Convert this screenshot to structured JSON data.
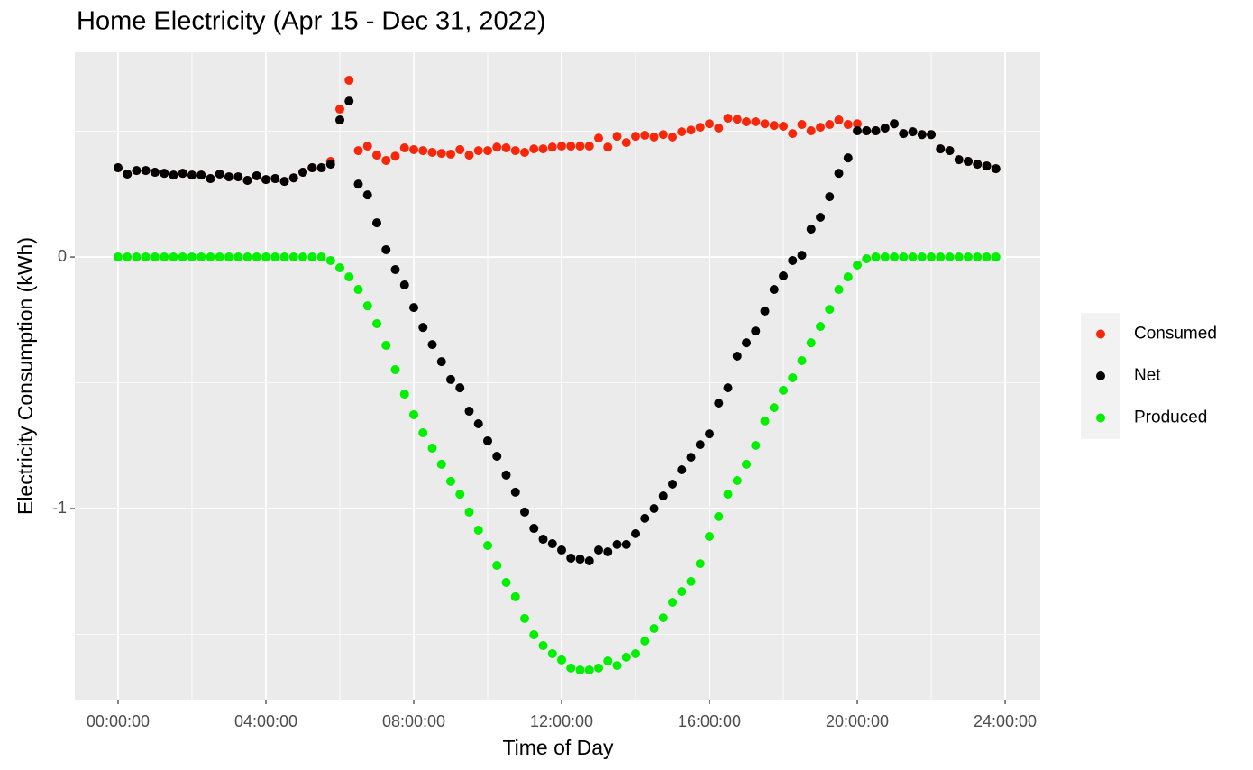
{
  "chart_data": {
    "type": "scatter",
    "title": "Home Electricity (Apr 15 - Dec 31, 2022)",
    "x_label": "Time of Day",
    "y_label": "Electricity Consumption (kWh)",
    "x": [
      0,
      0.25,
      0.5,
      0.75,
      1,
      1.25,
      1.5,
      1.75,
      2,
      2.25,
      2.5,
      2.75,
      3,
      3.25,
      3.5,
      3.75,
      4,
      4.25,
      4.5,
      4.75,
      5,
      5.25,
      5.5,
      5.75,
      6,
      6.25,
      6.5,
      6.75,
      7,
      7.25,
      7.5,
      7.75,
      8,
      8.25,
      8.5,
      8.75,
      9,
      9.25,
      9.5,
      9.75,
      10,
      10.25,
      10.5,
      10.75,
      11,
      11.25,
      11.5,
      11.75,
      12,
      12.25,
      12.5,
      12.75,
      13,
      13.25,
      13.5,
      13.75,
      14,
      14.25,
      14.5,
      14.75,
      15,
      15.25,
      15.5,
      15.75,
      16,
      16.25,
      16.5,
      16.75,
      17,
      17.25,
      17.5,
      17.75,
      18,
      18.25,
      18.5,
      18.75,
      19,
      19.25,
      19.5,
      19.75,
      20,
      20.25,
      20.5,
      20.75,
      21,
      21.25,
      21.5,
      21.75,
      22,
      22.25,
      22.5,
      22.75,
      23,
      23.25,
      23.5,
      23.75
    ],
    "series": [
      {
        "name": "Consumed",
        "color": "#f8270a",
        "values": [
          0.355,
          0.33,
          0.344,
          0.344,
          0.337,
          0.333,
          0.326,
          0.333,
          0.326,
          0.326,
          0.312,
          0.33,
          0.319,
          0.319,
          0.305,
          0.323,
          0.308,
          0.312,
          0.301,
          0.315,
          0.337,
          0.355,
          0.355,
          0.38,
          0.588,
          0.703,
          0.423,
          0.441,
          0.405,
          0.384,
          0.401,
          0.434,
          0.427,
          0.423,
          0.416,
          0.412,
          0.409,
          0.427,
          0.405,
          0.423,
          0.423,
          0.437,
          0.434,
          0.423,
          0.416,
          0.43,
          0.43,
          0.437,
          0.441,
          0.441,
          0.441,
          0.441,
          0.473,
          0.437,
          0.48,
          0.455,
          0.48,
          0.484,
          0.477,
          0.487,
          0.477,
          0.498,
          0.505,
          0.516,
          0.53,
          0.513,
          0.552,
          0.548,
          0.538,
          0.538,
          0.53,
          0.523,
          0.52,
          0.491,
          0.527,
          0.502,
          0.516,
          0.527,
          0.545,
          0.527,
          0.53,
          0.502,
          0.502,
          0.513,
          0.53,
          0.491,
          0.498,
          0.487,
          0.487,
          0.43,
          0.423,
          0.387,
          0.38,
          0.369,
          0.362,
          0.351
        ]
      },
      {
        "name": "Net",
        "color": "#000000",
        "values": [
          0.355,
          0.33,
          0.344,
          0.344,
          0.337,
          0.333,
          0.326,
          0.333,
          0.326,
          0.326,
          0.312,
          0.33,
          0.319,
          0.319,
          0.305,
          0.323,
          0.308,
          0.312,
          0.301,
          0.315,
          0.337,
          0.355,
          0.355,
          0.369,
          0.545,
          0.62,
          0.29,
          0.247,
          0.136,
          0.029,
          -0.05,
          -0.111,
          -0.201,
          -0.28,
          -0.348,
          -0.416,
          -0.487,
          -0.52,
          -0.613,
          -0.663,
          -0.731,
          -0.792,
          -0.867,
          -0.935,
          -1.014,
          -1.079,
          -1.122,
          -1.14,
          -1.165,
          -1.197,
          -1.201,
          -1.208,
          -1.165,
          -1.172,
          -1.143,
          -1.143,
          -1.1,
          -1.039,
          -1.0,
          -0.95,
          -0.903,
          -0.846,
          -0.796,
          -0.746,
          -0.703,
          -0.581,
          -0.52,
          -0.394,
          -0.341,
          -0.294,
          -0.215,
          -0.129,
          -0.075,
          -0.014,
          0.007,
          0.111,
          0.158,
          0.24,
          0.333,
          0.394,
          0.502,
          0.502,
          0.502,
          0.513,
          0.53,
          0.491,
          0.498,
          0.487,
          0.487,
          0.43,
          0.423,
          0.387,
          0.38,
          0.369,
          0.362,
          0.351
        ]
      },
      {
        "name": "Produced",
        "color": "#00f000",
        "values": [
          0,
          0,
          0,
          0,
          0,
          0,
          0,
          0,
          0,
          0,
          0,
          0,
          0,
          0,
          0,
          0,
          0,
          0,
          0,
          0,
          0,
          0,
          0,
          -0.014,
          -0.043,
          -0.079,
          -0.129,
          -0.194,
          -0.265,
          -0.351,
          -0.448,
          -0.545,
          -0.627,
          -0.699,
          -0.76,
          -0.824,
          -0.892,
          -0.943,
          -1.014,
          -1.086,
          -1.147,
          -1.226,
          -1.294,
          -1.351,
          -1.437,
          -1.502,
          -1.545,
          -1.577,
          -1.602,
          -1.634,
          -1.642,
          -1.642,
          -1.634,
          -1.606,
          -1.624,
          -1.591,
          -1.577,
          -1.527,
          -1.477,
          -1.434,
          -1.373,
          -1.33,
          -1.29,
          -1.219,
          -1.111,
          -1.032,
          -0.943,
          -0.889,
          -0.824,
          -0.749,
          -0.652,
          -0.599,
          -0.53,
          -0.48,
          -0.412,
          -0.341,
          -0.276,
          -0.208,
          -0.129,
          -0.079,
          -0.032,
          -0.007,
          0,
          0,
          0,
          0,
          0,
          0,
          0,
          0,
          0,
          0,
          0,
          0,
          0,
          0
        ]
      }
    ],
    "xlim": [
      -1.17,
      24.95
    ],
    "ylim": [
      -1.76,
      0.814
    ],
    "xticks": [
      {
        "value": 0,
        "label": "00:00:00"
      },
      {
        "value": 4,
        "label": "04:00:00"
      },
      {
        "value": 8,
        "label": "08:00:00"
      },
      {
        "value": 12,
        "label": "12:00:00"
      },
      {
        "value": 16,
        "label": "16:00:00"
      },
      {
        "value": 20,
        "label": "20:00:00"
      },
      {
        "value": 24,
        "label": "24:00:00"
      }
    ],
    "yticks": [
      -1,
      0
    ],
    "grid": true,
    "legend": "right"
  }
}
